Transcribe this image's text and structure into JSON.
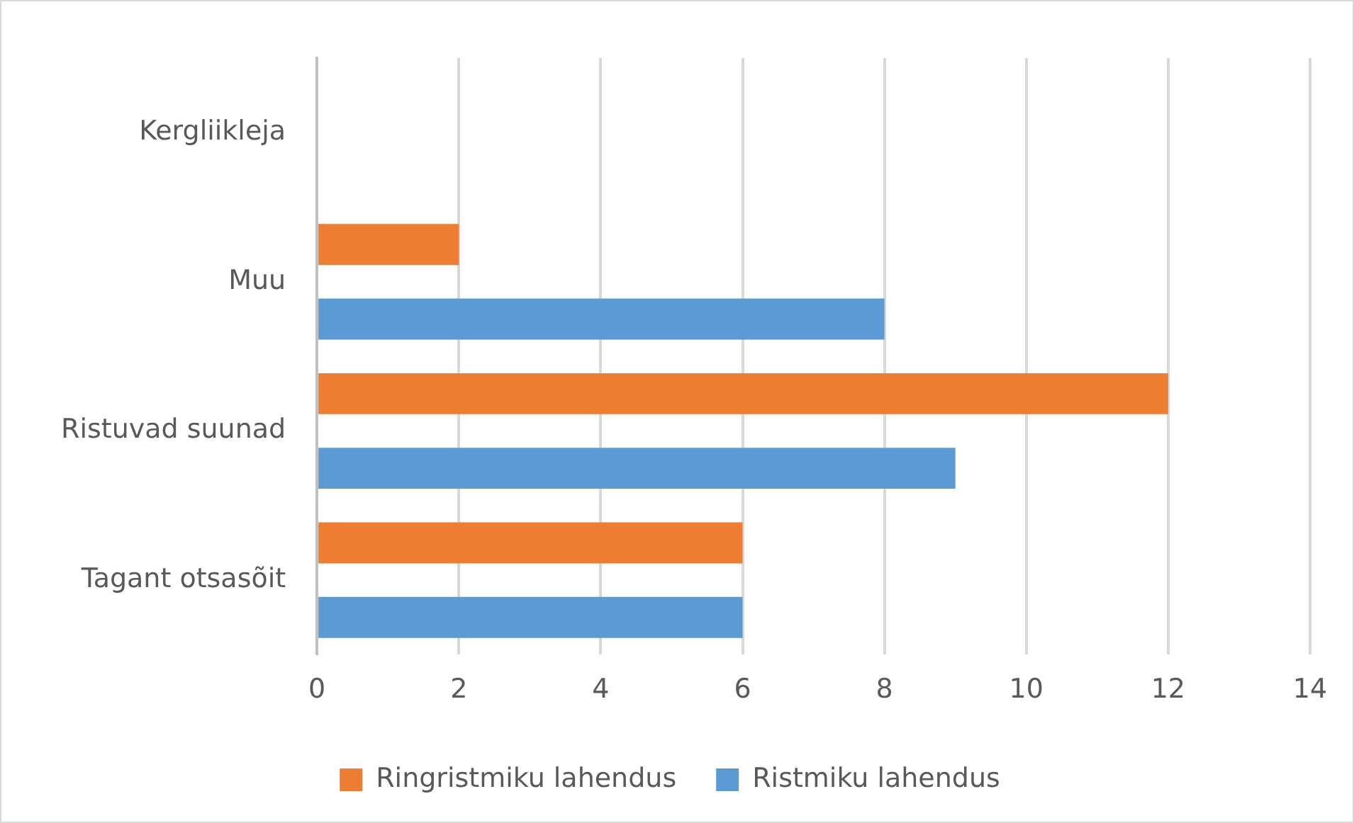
{
  "chart_data": {
    "type": "bar",
    "orientation": "horizontal",
    "categories": [
      "Kergliikleja",
      "Muu",
      "Ristuvad suunad",
      "Tagant otsasõit"
    ],
    "series": [
      {
        "name": "Ringristmiku lahendus",
        "color": "#ed7d31",
        "values": [
          0,
          2,
          12,
          6
        ]
      },
      {
        "name": "Ristmiku lahendus",
        "color": "#5b9bd5",
        "values": [
          0,
          8,
          9,
          6
        ]
      }
    ],
    "xlim": [
      0,
      14
    ],
    "xticks": [
      0,
      2,
      4,
      6,
      8,
      10,
      12,
      14
    ],
    "grid": "x",
    "legend": "bottom"
  }
}
